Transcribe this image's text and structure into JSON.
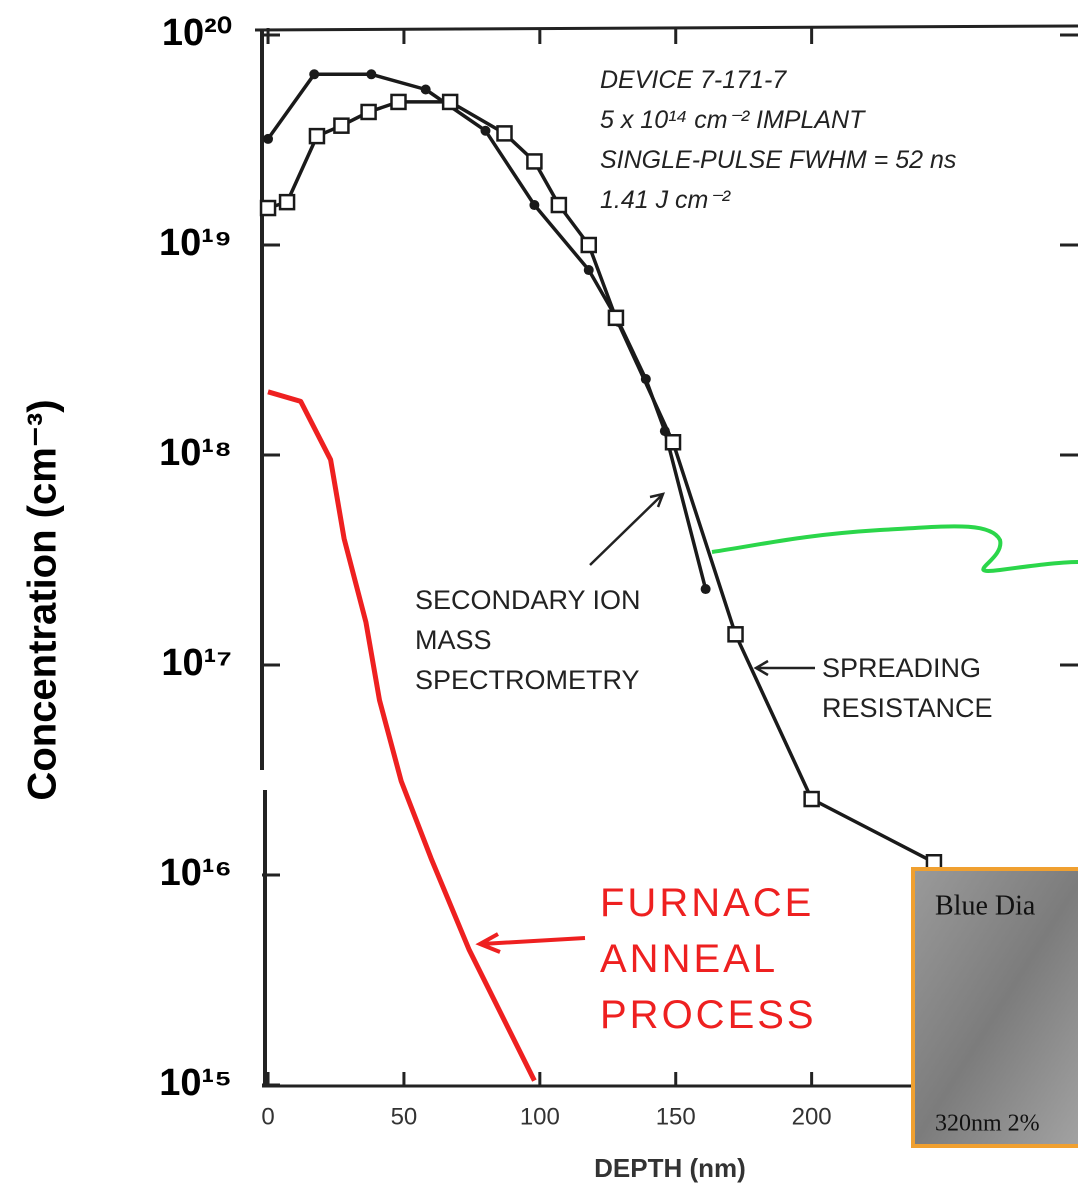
{
  "chart_data": {
    "type": "line",
    "ylabel": "Concentration (cm⁻³)",
    "xlabel": "DEPTH (nm)",
    "ylog": true,
    "xlim": [
      -2,
      298
    ],
    "ylim": [
      1000000000000000.0,
      1e+20
    ],
    "xticks": [
      0,
      50,
      100,
      150,
      200
    ],
    "yticks": [
      {
        "value": 1e+20,
        "label": "10²⁰"
      },
      {
        "value": 1e+19,
        "label": "10¹⁹"
      },
      {
        "value": 1e+18,
        "label": "10¹⁸"
      },
      {
        "value": 1e+17,
        "label": "10¹⁷"
      },
      {
        "value": 1e+16,
        "label": "10¹⁶"
      },
      {
        "value": 1000000000000000.0,
        "label": "10¹⁵"
      }
    ],
    "annotation": [
      "DEVICE 7-171-7",
      "5 x 10¹⁴ cm⁻² IMPLANT",
      "SINGLE-PULSE FWHM = 52 ns",
      "1.41 J cm⁻²"
    ],
    "series": [
      {
        "name": "SECONDARY ION MASS SPECTROMETRY",
        "color": "#1a1a1a",
        "marker": "dot",
        "x": [
          0,
          17,
          38,
          58,
          80,
          98,
          118,
          129,
          139,
          146,
          161
        ],
        "values": [
          3.2e+19,
          6.5e+19,
          6.5e+19,
          5.5e+19,
          3.5e+19,
          1.55e+19,
          7.6e+18,
          4.3e+18,
          2.3e+18,
          1.3e+18,
          2.3e+17
        ]
      },
      {
        "name": "SPREADING RESISTANCE",
        "color": "#1a1a1a",
        "marker": "square",
        "x": [
          0,
          7,
          18,
          27,
          37,
          48,
          67,
          87,
          98,
          107,
          118,
          128,
          149,
          172,
          200,
          245
        ],
        "values": [
          1.5e+19,
          1.6e+19,
          3.3e+19,
          3.7e+19,
          4.3e+19,
          4.8e+19,
          4.8e+19,
          3.4e+19,
          2.5e+19,
          1.55e+19,
          1e+19,
          4.5e+18,
          1.15e+18,
          1.4e+17,
          2.3e+16,
          1.15e+16
        ]
      },
      {
        "name": "FURNACE ANNEAL PROCESS",
        "color": "#ee2020",
        "marker": "none",
        "x": [
          0,
          12,
          23,
          28,
          36,
          41,
          49,
          60,
          74,
          98
        ],
        "values": [
          2e+18,
          1.8e+18,
          9.5e+17,
          4e+17,
          1.6e+17,
          6.8e+16,
          2.8e+16,
          1.2e+16,
          4400000000000000.0,
          1050000000000000.0
        ]
      }
    ],
    "inset": {
      "title": "Blue Dia",
      "caption": "320nm 2%"
    }
  }
}
